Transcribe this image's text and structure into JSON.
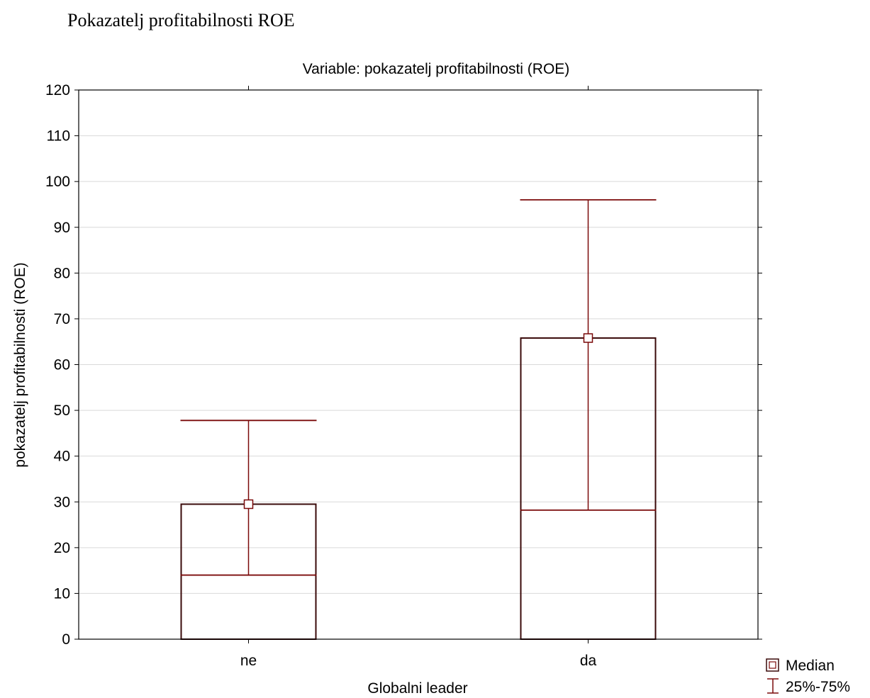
{
  "page_heading": "Pokazatelj profitabilnosti ROE",
  "colors": {
    "series": "#7b0a0a",
    "box_border": "#3a0a0a",
    "grid": "#d9d9d9",
    "axis": "#000000"
  },
  "chart_data": {
    "type": "box",
    "title": "Variable: pokazatelj profitabilnosti (ROE)",
    "xlabel": "Globalni leader",
    "ylabel": "pokazatelj profitabilnosti (ROE)",
    "ylim": [
      0,
      120
    ],
    "yticks": [
      0,
      10,
      20,
      30,
      40,
      50,
      60,
      70,
      80,
      90,
      100,
      110,
      120
    ],
    "grid": true,
    "categories": [
      "ne",
      "da"
    ],
    "boxes": [
      {
        "category": "ne",
        "box_low": 0,
        "box_high": 29.5,
        "median": 29.5,
        "q25": 14,
        "q75": 47.8
      },
      {
        "category": "da",
        "box_low": 0,
        "box_high": 65.8,
        "median": 65.8,
        "q25": 28.2,
        "q75": 96
      }
    ],
    "legend": {
      "position": "bottom-right",
      "items": [
        {
          "symbol": "square",
          "label": "Median"
        },
        {
          "symbol": "whisker",
          "label": "25%-75%"
        }
      ]
    }
  }
}
